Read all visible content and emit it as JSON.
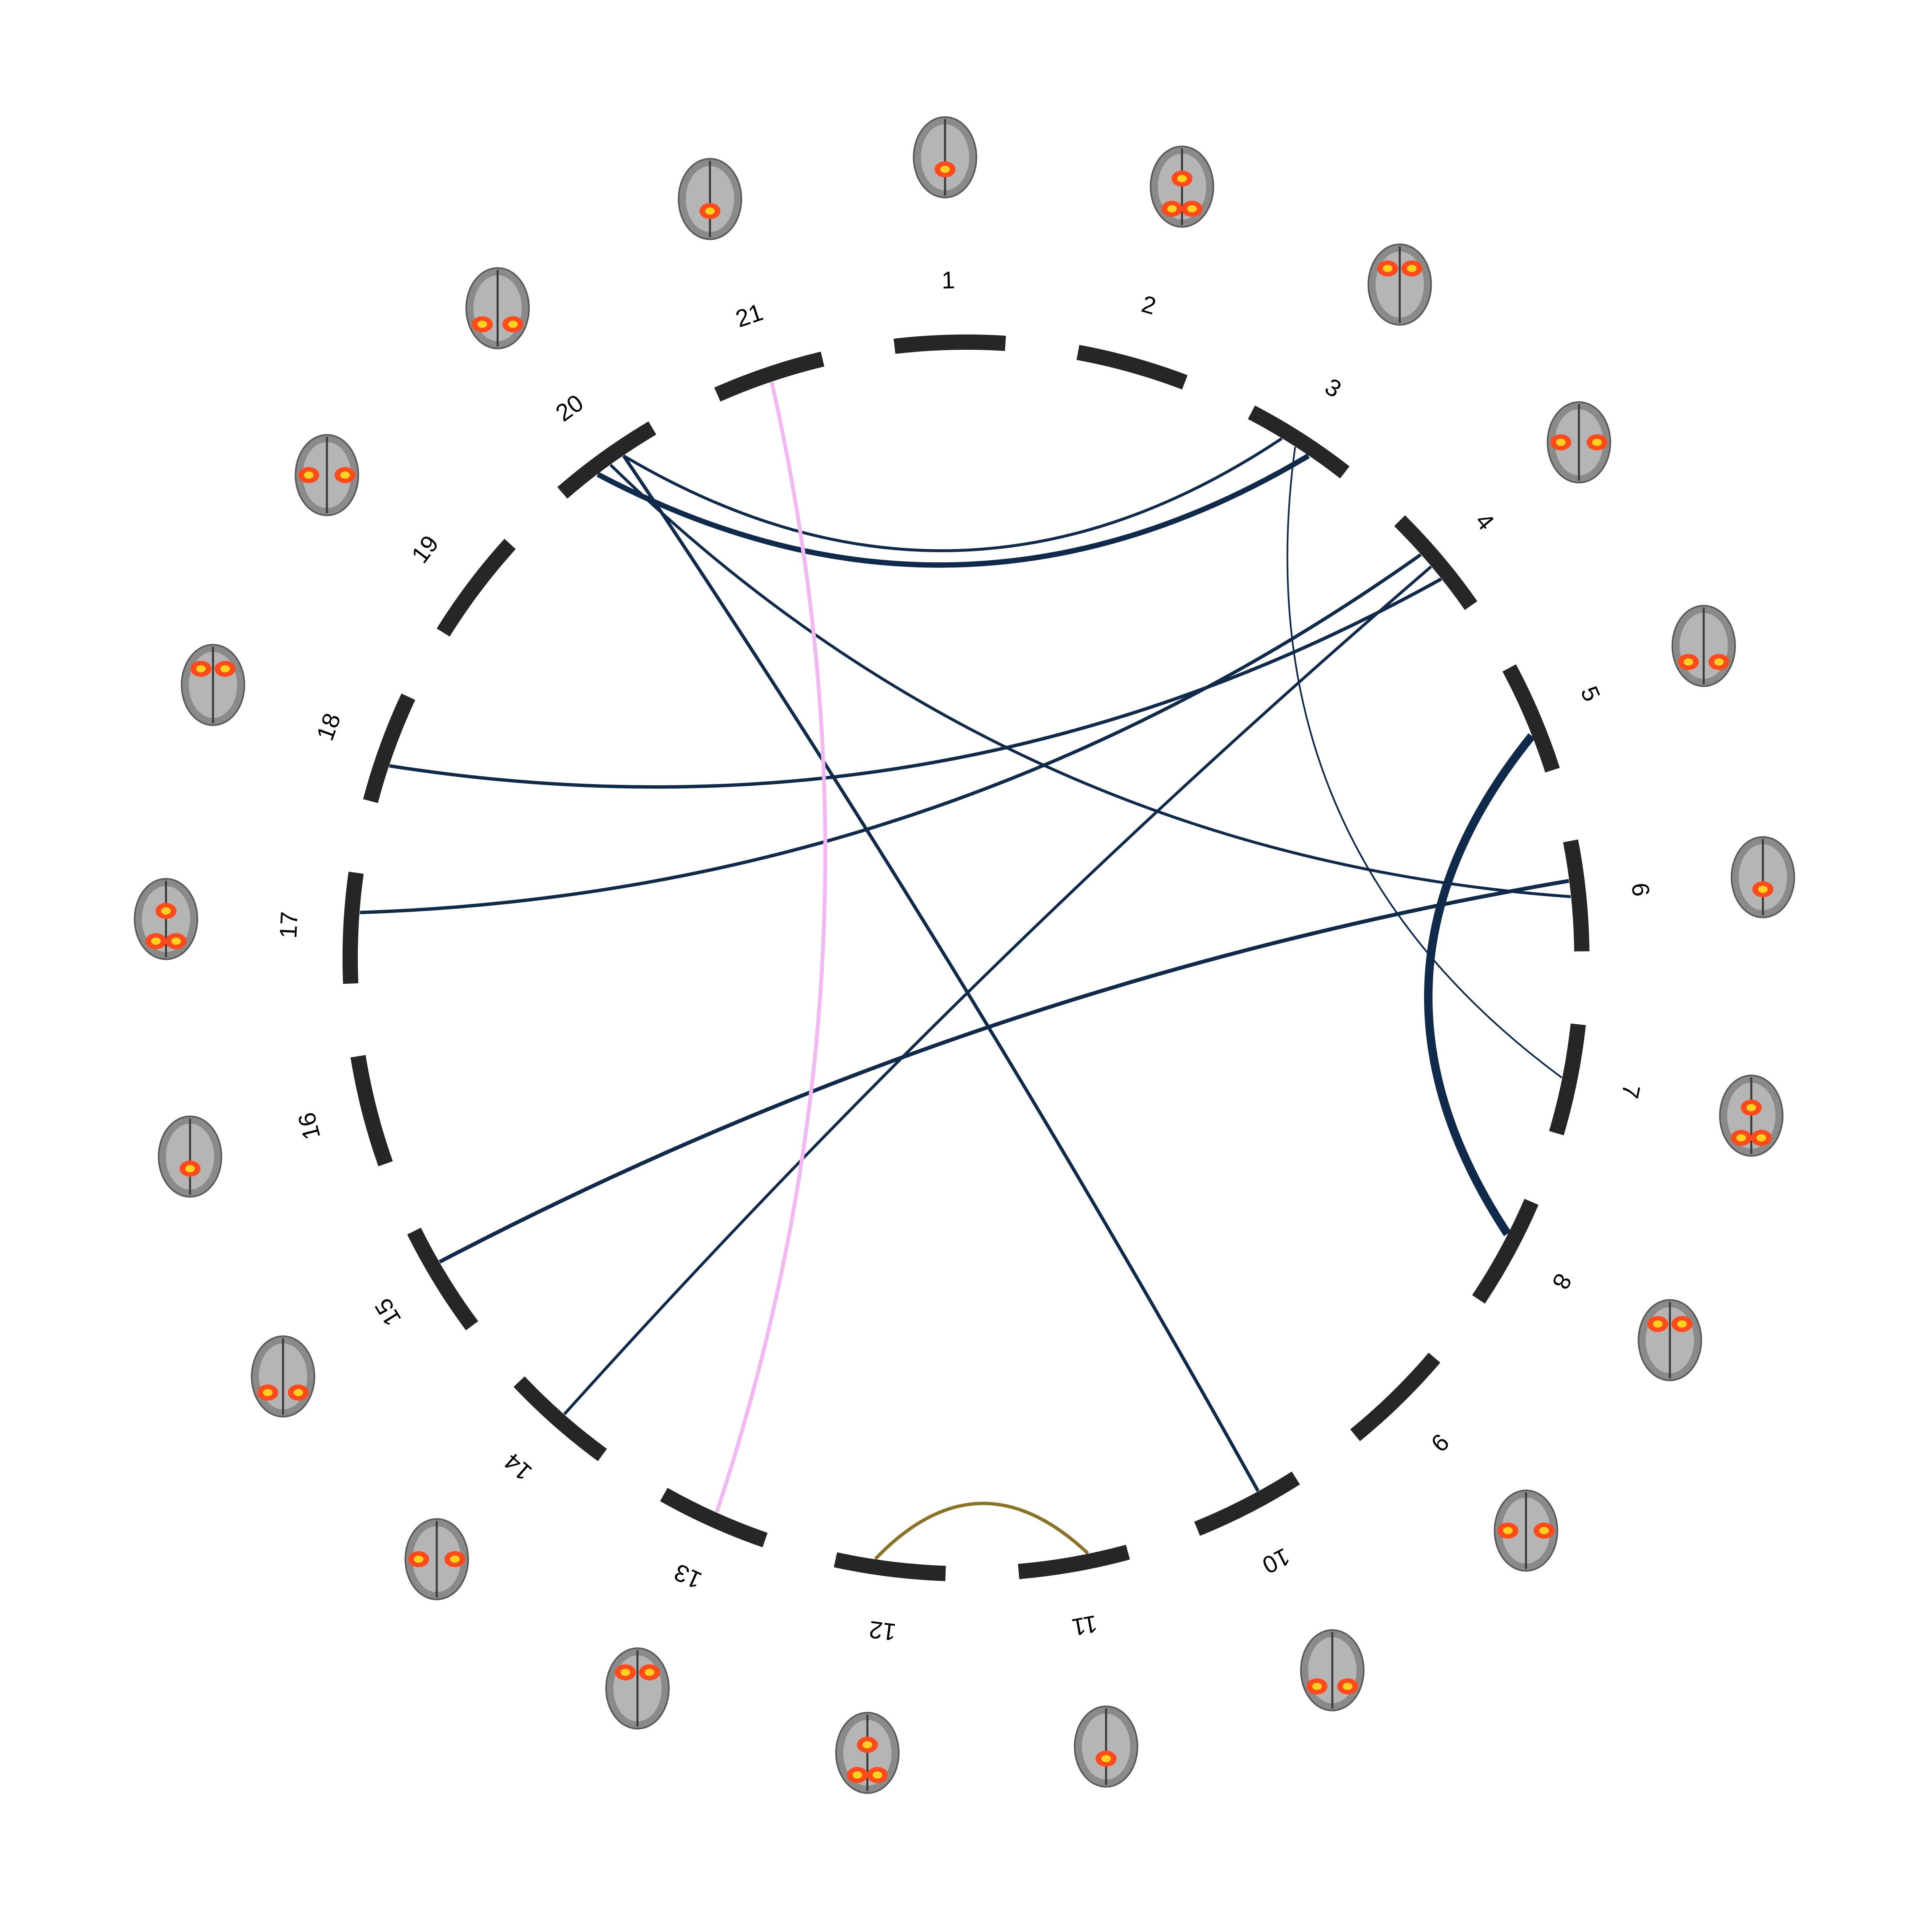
{
  "segments": [
    {
      "label": "1"
    },
    {
      "label": "2"
    },
    {
      "label": "3"
    },
    {
      "label": "4"
    },
    {
      "label": "5"
    },
    {
      "label": "6"
    },
    {
      "label": "7"
    },
    {
      "label": "8"
    },
    {
      "label": "9"
    },
    {
      "label": "10"
    },
    {
      "label": "11"
    },
    {
      "label": "12"
    },
    {
      "label": "13"
    },
    {
      "label": "14"
    },
    {
      "label": "15"
    },
    {
      "label": "16"
    },
    {
      "label": "17"
    },
    {
      "label": "18"
    },
    {
      "label": "19"
    },
    {
      "label": "20"
    },
    {
      "label": "21"
    }
  ],
  "colors": {
    "segment": "#262626",
    "link_navy": "#0f2a4a",
    "link_pink": "#f2b8f2",
    "link_olive": "#8c7426",
    "thumb_gray": "#8a8a8a",
    "thumb_hot": "#ff4a1c",
    "thumb_yellow": "#ffd21f"
  },
  "links": [
    {
      "from": 20,
      "to": 3,
      "color": "link_navy",
      "weight": 2.2
    },
    {
      "from": 20,
      "to": 6,
      "color": "link_navy",
      "weight": 1.2
    },
    {
      "from": 20,
      "to": 10,
      "color": "link_navy",
      "weight": 1.4
    },
    {
      "from": 3,
      "to": 20,
      "color": "link_navy",
      "weight": 1.2
    },
    {
      "from": 3,
      "to": 7,
      "color": "link_navy",
      "weight": 0.7
    },
    {
      "from": 4,
      "to": 18,
      "color": "link_navy",
      "weight": 1.4
    },
    {
      "from": 4,
      "to": 17,
      "color": "link_navy",
      "weight": 1.4
    },
    {
      "from": 4,
      "to": 14,
      "color": "link_navy",
      "weight": 1.2
    },
    {
      "from": 5,
      "to": 8,
      "color": "link_navy",
      "weight": 3.5
    },
    {
      "from": 6,
      "to": 15,
      "color": "link_navy",
      "weight": 1.6
    },
    {
      "from": 21,
      "to": 13,
      "color": "link_pink",
      "weight": 1.6
    },
    {
      "from": 12,
      "to": 11,
      "color": "link_olive",
      "weight": 1.4
    }
  ]
}
